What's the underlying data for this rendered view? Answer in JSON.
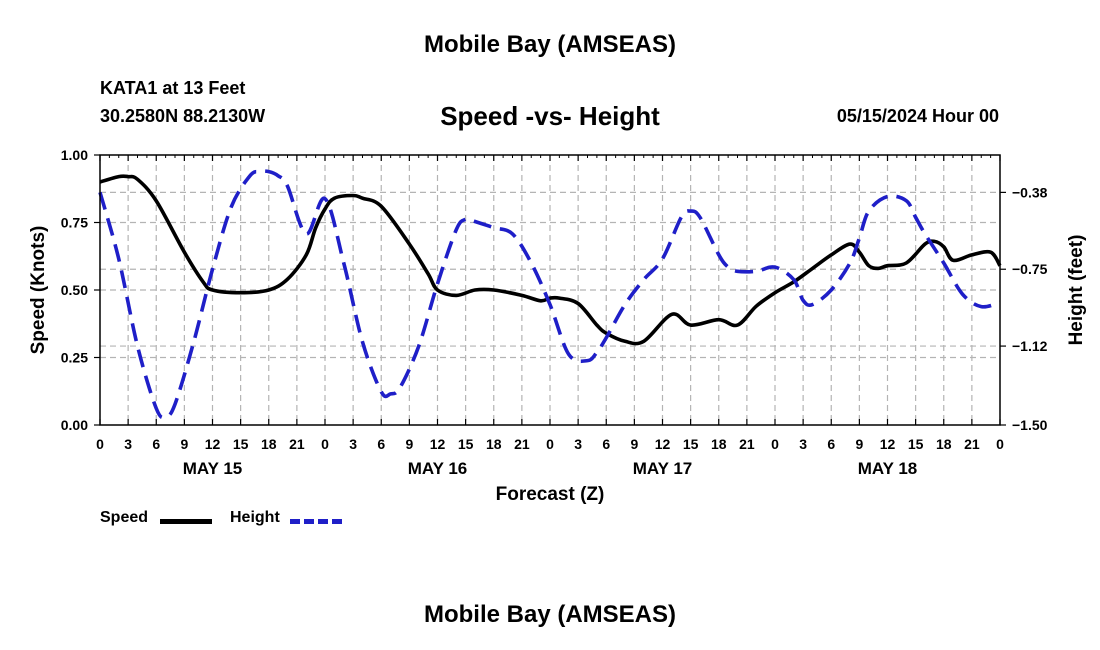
{
  "header": {
    "title": "Mobile Bay (AMSEAS)",
    "station": "KATA1 at 13 Feet",
    "coordinates": "30.2580N  88.2130W",
    "run_time": "05/15/2024 Hour 00"
  },
  "footer": {
    "title": "Mobile Bay (AMSEAS)"
  },
  "chart_data": {
    "type": "line",
    "title": "Speed -vs- Height",
    "xlabel": "Forecast (Z)",
    "ylabel": "Speed (Knots)",
    "ylabel_right": "Height (feet)",
    "x_unit": "hours from 05/15/2024 00Z",
    "xlim": [
      0,
      96
    ],
    "ylim": [
      0,
      1
    ],
    "ylim_right": [
      -1.5,
      -0.2
    ],
    "x_tick_values": [
      0,
      3,
      6,
      9,
      12,
      15,
      18,
      21,
      24,
      27,
      30,
      33,
      36,
      39,
      42,
      45,
      48,
      51,
      54,
      57,
      60,
      63,
      66,
      69,
      72,
      75,
      78,
      81,
      84,
      87,
      90,
      93,
      96
    ],
    "x_tick_labels": [
      "0",
      "3",
      "6",
      "9",
      "12",
      "15",
      "18",
      "21",
      "0",
      "3",
      "6",
      "9",
      "12",
      "15",
      "18",
      "21",
      "0",
      "3",
      "6",
      "9",
      "12",
      "15",
      "18",
      "21",
      "0",
      "3",
      "6",
      "9",
      "12",
      "15",
      "18",
      "21",
      "0"
    ],
    "date_labels": [
      {
        "x": 12,
        "label": "MAY 15"
      },
      {
        "x": 36,
        "label": "MAY 16"
      },
      {
        "x": 60,
        "label": "MAY 17"
      },
      {
        "x": 84,
        "label": "MAY 18"
      }
    ],
    "y_ticks": [
      0,
      0.25,
      0.5,
      0.75,
      1
    ],
    "y_tick_labels": [
      "0.00",
      "0.25",
      "0.50",
      "0.75",
      "1.00"
    ],
    "y_right_ticks": [
      -1.5,
      -1.12,
      -0.75,
      -0.38
    ],
    "y_right_tick_labels": [
      "−1.50",
      "−1.12",
      "−0.75",
      "−0.38"
    ],
    "grid": true,
    "legend_position": "bottom-left",
    "series": [
      {
        "name": "Speed",
        "axis": "left",
        "color": "#000000",
        "style": "solid",
        "x": [
          0,
          2,
          3,
          4,
          6,
          9,
          11,
          12,
          15,
          18,
          20,
          22,
          23,
          24,
          25,
          27,
          28,
          30,
          33,
          35,
          36,
          38,
          40,
          42,
          45,
          47,
          48,
          49,
          51,
          53,
          54,
          56,
          58,
          61,
          63,
          66,
          68,
          70,
          72,
          74,
          76,
          78,
          80,
          81,
          82,
          83,
          84,
          86,
          88,
          89,
          90,
          91,
          93,
          95,
          96
        ],
        "y": [
          0.9,
          0.92,
          0.92,
          0.91,
          0.83,
          0.64,
          0.53,
          0.5,
          0.49,
          0.5,
          0.54,
          0.63,
          0.73,
          0.8,
          0.84,
          0.85,
          0.84,
          0.81,
          0.67,
          0.56,
          0.5,
          0.48,
          0.5,
          0.5,
          0.48,
          0.46,
          0.47,
          0.47,
          0.45,
          0.37,
          0.34,
          0.31,
          0.31,
          0.41,
          0.37,
          0.39,
          0.37,
          0.44,
          0.49,
          0.53,
          0.58,
          0.63,
          0.67,
          0.64,
          0.59,
          0.58,
          0.59,
          0.6,
          0.67,
          0.68,
          0.66,
          0.61,
          0.63,
          0.64,
          0.59
        ]
      },
      {
        "name": "Height",
        "axis": "right",
        "color": "#1f1fc8",
        "style": "dashed",
        "x": [
          0,
          2,
          4,
          6,
          7,
          8,
          10,
          12,
          14,
          16,
          17,
          18,
          19,
          20,
          22,
          24,
          26,
          28,
          30,
          31,
          32,
          34,
          36,
          38,
          39,
          40,
          42,
          44,
          46,
          48,
          50,
          52,
          53,
          54,
          56,
          58,
          60,
          62,
          63,
          64,
          66,
          67,
          68,
          70,
          72,
          74,
          75,
          76,
          78,
          80,
          81,
          82,
          84,
          86,
          87,
          88,
          90,
          92,
          94,
          96
        ],
        "y": [
          -0.38,
          -0.7,
          -1.12,
          -1.42,
          -1.46,
          -1.4,
          -1.1,
          -0.75,
          -0.45,
          -0.3,
          -0.28,
          -0.28,
          -0.3,
          -0.35,
          -0.58,
          -0.41,
          -0.72,
          -1.1,
          -1.34,
          -1.35,
          -1.32,
          -1.12,
          -0.82,
          -0.56,
          -0.51,
          -0.52,
          -0.55,
          -0.58,
          -0.72,
          -0.92,
          -1.16,
          -1.19,
          -1.15,
          -1.08,
          -0.92,
          -0.8,
          -0.7,
          -0.5,
          -0.47,
          -0.5,
          -0.68,
          -0.74,
          -0.76,
          -0.76,
          -0.74,
          -0.8,
          -0.9,
          -0.92,
          -0.85,
          -0.72,
          -0.6,
          -0.47,
          -0.4,
          -0.42,
          -0.5,
          -0.58,
          -0.72,
          -0.87,
          -0.93,
          -0.91
        ]
      }
    ]
  }
}
